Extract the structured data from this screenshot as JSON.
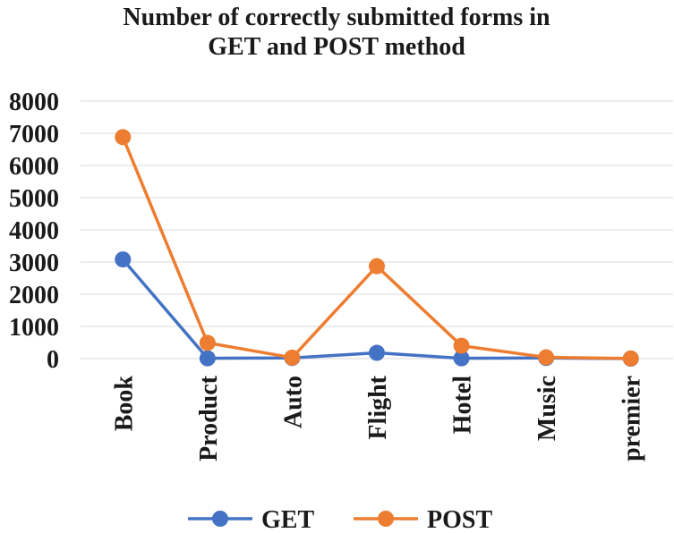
{
  "chart_data": {
    "type": "line",
    "title": [
      "Number of correctly submitted forms in",
      "GET and POST method"
    ],
    "xlabel": "",
    "ylabel": "",
    "categories": [
      "Book",
      "Product",
      "Auto",
      "Flight",
      "Hotel",
      "Music",
      "premier"
    ],
    "yticks": [
      "0",
      "1000",
      "2000",
      "3000",
      "4000",
      "5000",
      "6000",
      "7000",
      "8000"
    ],
    "ylim": [
      0,
      8000
    ],
    "grid": true,
    "legend_position": "bottom",
    "series": [
      {
        "name": "GET",
        "color": "#4472c4",
        "values": [
          3080,
          10,
          20,
          180,
          10,
          20,
          0
        ]
      },
      {
        "name": "POST",
        "color": "#ed7d31",
        "values": [
          6880,
          490,
          30,
          2870,
          400,
          40,
          5
        ]
      }
    ]
  }
}
